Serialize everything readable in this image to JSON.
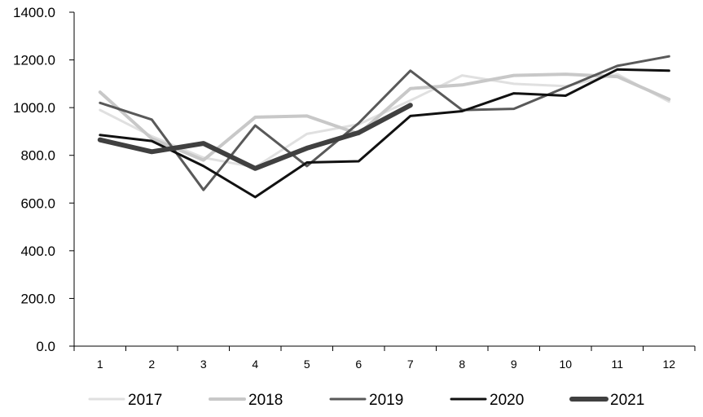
{
  "chart_data": {
    "type": "line",
    "title": "",
    "xlabel": "",
    "ylabel": "",
    "categories": [
      "1",
      "2",
      "3",
      "4",
      "5",
      "6",
      "7",
      "8",
      "9",
      "10",
      "11",
      "12"
    ],
    "ylim": [
      0,
      1400
    ],
    "yticks": [
      "0.0",
      "200.0",
      "400.0",
      "600.0",
      "800.0",
      "1000.0",
      "1200.0",
      "1400.0"
    ],
    "grid": false,
    "legend": "bottom",
    "series": [
      {
        "name": "2017",
        "color": "#e0e0e0",
        "width": 3,
        "values": [
          990,
          880,
          790,
          750,
          890,
          930,
          1030,
          1135,
          1100,
          1090,
          1140,
          1025
        ]
      },
      {
        "name": "2018",
        "color": "#c8c8c8",
        "width": 4,
        "values": [
          1065,
          870,
          780,
          960,
          965,
          890,
          1080,
          1095,
          1135,
          1140,
          1130,
          1035
        ]
      },
      {
        "name": "2019",
        "color": "#595959",
        "width": 3,
        "values": [
          1020,
          950,
          655,
          925,
          755,
          935,
          1155,
          990,
          995,
          1085,
          1175,
          1215
        ]
      },
      {
        "name": "2020",
        "color": "#111111",
        "width": 3,
        "values": [
          885,
          860,
          755,
          625,
          770,
          775,
          965,
          985,
          1060,
          1050,
          1160,
          1155
        ]
      },
      {
        "name": "2021",
        "color": "#404040",
        "width": 6,
        "values": [
          865,
          815,
          850,
          745,
          830,
          895,
          1010,
          null,
          null,
          null,
          null,
          null
        ]
      }
    ]
  }
}
